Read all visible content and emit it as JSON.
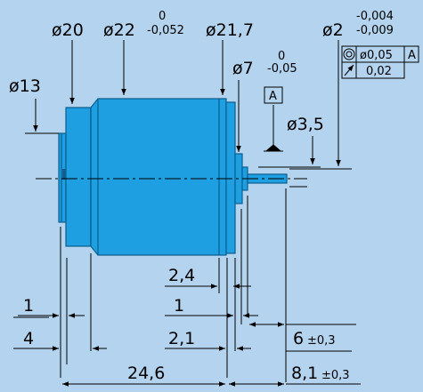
{
  "colors": {
    "background": "#b4d3ee",
    "motor_body": "#1e9fe2",
    "motor_outline": "#0d5f8f",
    "line": "#000000"
  },
  "labels": {
    "d20": "ø20",
    "d22": "ø22",
    "d22_tol_upper": "0",
    "d22_tol_lower": "-0,052",
    "d21_7": "ø21,7",
    "d2": "ø2",
    "d2_tol_upper": "-0,004",
    "d2_tol_lower": "-0,009",
    "d13": "ø13",
    "d7": "ø7",
    "d7_tol_upper": "0",
    "d7_tol_lower": "-0,05",
    "datum_a": "A",
    "d3_5": "ø3,5",
    "dim_2_4": "2,4",
    "dim_1_left": "1",
    "dim_1_mid": "1",
    "dim_4": "4",
    "dim_2_1": "2,1",
    "dim_6": "6",
    "dim_6_tol": "±0,3",
    "dim_24_6": "24,6",
    "dim_8_1": "8,1",
    "dim_8_1_tol": "±0,3"
  },
  "tolerance_frame": {
    "row1": {
      "symbol": "concentricity-icon",
      "value": "ø0,05",
      "datum": "A"
    },
    "row2": {
      "symbol": "runout-icon",
      "value": "0,02"
    }
  }
}
